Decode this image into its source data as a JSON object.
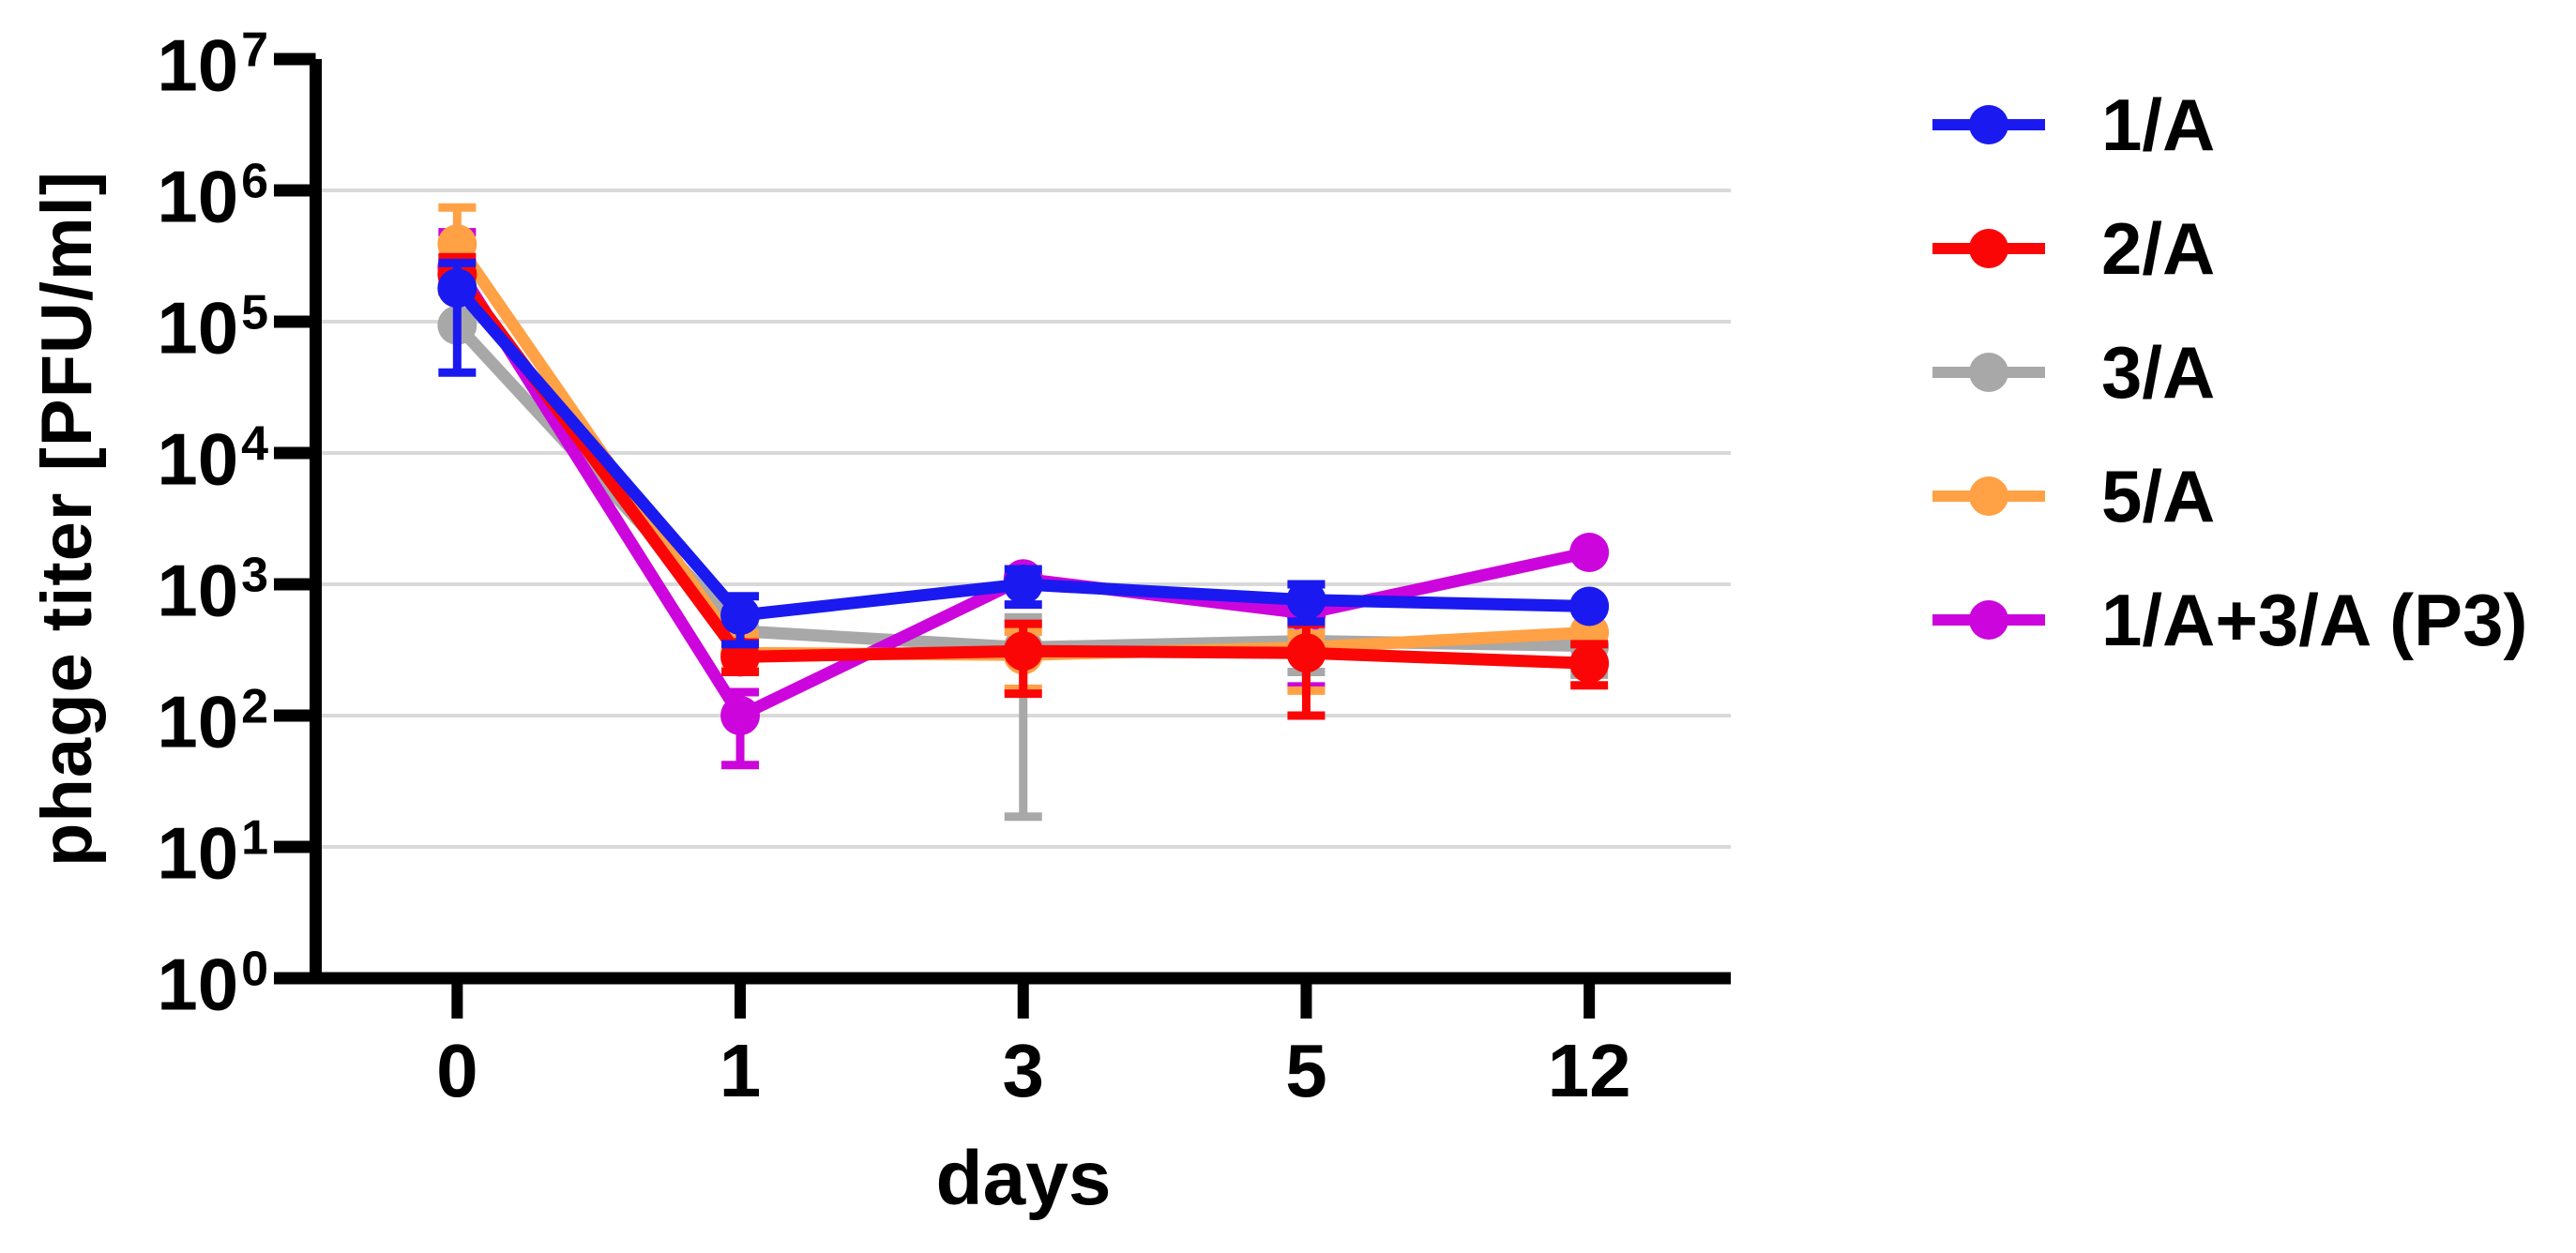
{
  "figure": {
    "background": "#ffffff"
  },
  "chart_data": {
    "type": "line",
    "xlabel": "days",
    "ylabel": "phage titer [PFU/ml]",
    "x_tick_labels": [
      "0",
      "1",
      "3",
      "5",
      "12"
    ],
    "x_values_days": [
      0,
      1,
      3,
      5,
      12
    ],
    "y_axis": {
      "scale": "log10",
      "base_label": "10",
      "tick_exponents": [
        0,
        1,
        2,
        3,
        4,
        5,
        6,
        7
      ],
      "ylim": [
        1,
        10000000
      ],
      "unit": "PFU/ml"
    },
    "grid": {
      "horizontal": true,
      "color": "#d9d9d9"
    },
    "legend": {
      "position": "right"
    },
    "series": [
      {
        "name": "1/A",
        "color": "#1a1af0",
        "values": [
          180000,
          580,
          1000,
          760,
          680
        ],
        "error_lo": [
          41000,
          350,
          700,
          520,
          null
        ],
        "error_hi": [
          280000,
          810,
          1300,
          1000,
          null
        ]
      },
      {
        "name": "2/A",
        "color": "#fb0606",
        "values": [
          230000,
          280,
          310,
          300,
          250
        ],
        "error_lo": [
          170000,
          215,
          147,
          100,
          170
        ],
        "error_hi": [
          310000,
          360,
          500,
          500,
          350
        ]
      },
      {
        "name": "3/A",
        "color": "#a8a8a8",
        "values": [
          94000,
          440,
          330,
          370,
          340
        ],
        "error_lo": [
          null,
          null,
          17,
          215,
          205
        ],
        "error_hi": [
          null,
          null,
          560,
          460,
          430
        ]
      },
      {
        "name": "5/A",
        "color": "#ffa144",
        "values": [
          390000,
          300,
          290,
          330,
          430
        ],
        "error_lo": [
          220000,
          220,
          160,
          155,
          null
        ],
        "error_hi": [
          740000,
          420,
          435,
          420,
          null
        ]
      },
      {
        "name": "1/A+3/A (P3)",
        "color": "#cc05dc",
        "values": [
          260000,
          100,
          1100,
          600,
          1750
        ],
        "error_lo": [
          190000,
          42,
          null,
          167,
          null
        ],
        "error_hi": [
          480000,
          151,
          null,
          1000,
          null
        ]
      }
    ]
  }
}
